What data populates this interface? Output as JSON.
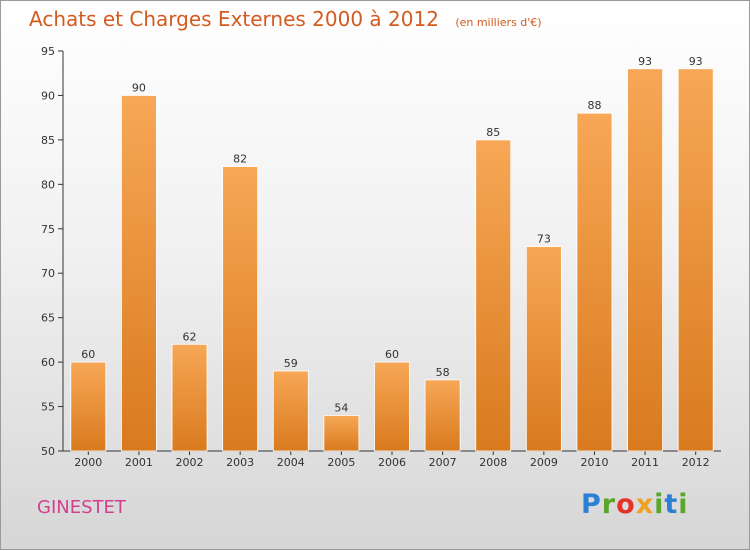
{
  "header": {
    "title": "Achats et Charges Externes 2000 à 2012",
    "unit": "(en milliers d'€)"
  },
  "footer": {
    "commune": "GINESTET",
    "brand_letters": [
      "P",
      "r",
      "o",
      "x",
      "i",
      "t",
      "i"
    ]
  },
  "colors": {
    "title": "#d45b1f",
    "commune": "#d33f8f",
    "bar_top": "#f7a756",
    "bar_bottom": "#d97a1e",
    "brand": [
      "#2b7fd4",
      "#5aa62b",
      "#e4322b",
      "#f0a020",
      "#5aa62b",
      "#2b7fd4",
      "#5aa62b"
    ]
  },
  "chart_data": {
    "type": "bar",
    "title": "Achats et Charges Externes 2000 à 2012",
    "subtitle": "(en milliers d'€)",
    "categories": [
      "2000",
      "2001",
      "2002",
      "2003",
      "2004",
      "2005",
      "2006",
      "2007",
      "2008",
      "2009",
      "2010",
      "2011",
      "2012"
    ],
    "values": [
      60,
      90,
      62,
      82,
      59,
      54,
      60,
      58,
      85,
      73,
      88,
      93,
      93
    ],
    "ylim": [
      50,
      95
    ],
    "yticks": [
      50,
      55,
      60,
      65,
      70,
      75,
      80,
      85,
      90,
      95
    ],
    "grid": false
  }
}
